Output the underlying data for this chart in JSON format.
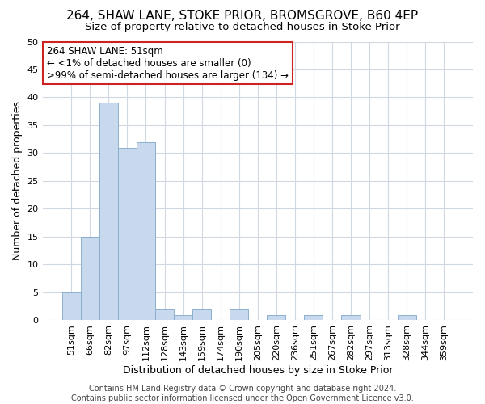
{
  "title1": "264, SHAW LANE, STOKE PRIOR, BROMSGROVE, B60 4EP",
  "title2": "Size of property relative to detached houses in Stoke Prior",
  "xlabel": "Distribution of detached houses by size in Stoke Prior",
  "ylabel": "Number of detached properties",
  "categories": [
    "51sqm",
    "66sqm",
    "82sqm",
    "97sqm",
    "112sqm",
    "128sqm",
    "143sqm",
    "159sqm",
    "174sqm",
    "190sqm",
    "205sqm",
    "220sqm",
    "236sqm",
    "251sqm",
    "267sqm",
    "282sqm",
    "297sqm",
    "313sqm",
    "328sqm",
    "344sqm",
    "359sqm"
  ],
  "values": [
    5,
    15,
    39,
    31,
    32,
    2,
    1,
    2,
    0,
    2,
    0,
    1,
    0,
    1,
    0,
    1,
    0,
    0,
    1,
    0,
    0
  ],
  "bar_color": "#c8d8ed",
  "bar_edge_color": "#8ab0d0",
  "annotation_text": "264 SHAW LANE: 51sqm\n← <1% of detached houses are smaller (0)\n>99% of semi-detached houses are larger (134) →",
  "annotation_box_facecolor": "#ffffff",
  "annotation_box_edgecolor": "#cc2222",
  "ylim": [
    0,
    50
  ],
  "yticks": [
    0,
    5,
    10,
    15,
    20,
    25,
    30,
    35,
    40,
    45,
    50
  ],
  "grid_color": "#d0d8e4",
  "background_color": "#ffffff",
  "plot_bg_color": "#ffffff",
  "footer_text": "Contains HM Land Registry data © Crown copyright and database right 2024.\nContains public sector information licensed under the Open Government Licence v3.0.",
  "title1_fontsize": 11,
  "title2_fontsize": 9.5,
  "xlabel_fontsize": 9,
  "ylabel_fontsize": 9,
  "tick_fontsize": 8,
  "annotation_fontsize": 8.5,
  "footer_fontsize": 7
}
